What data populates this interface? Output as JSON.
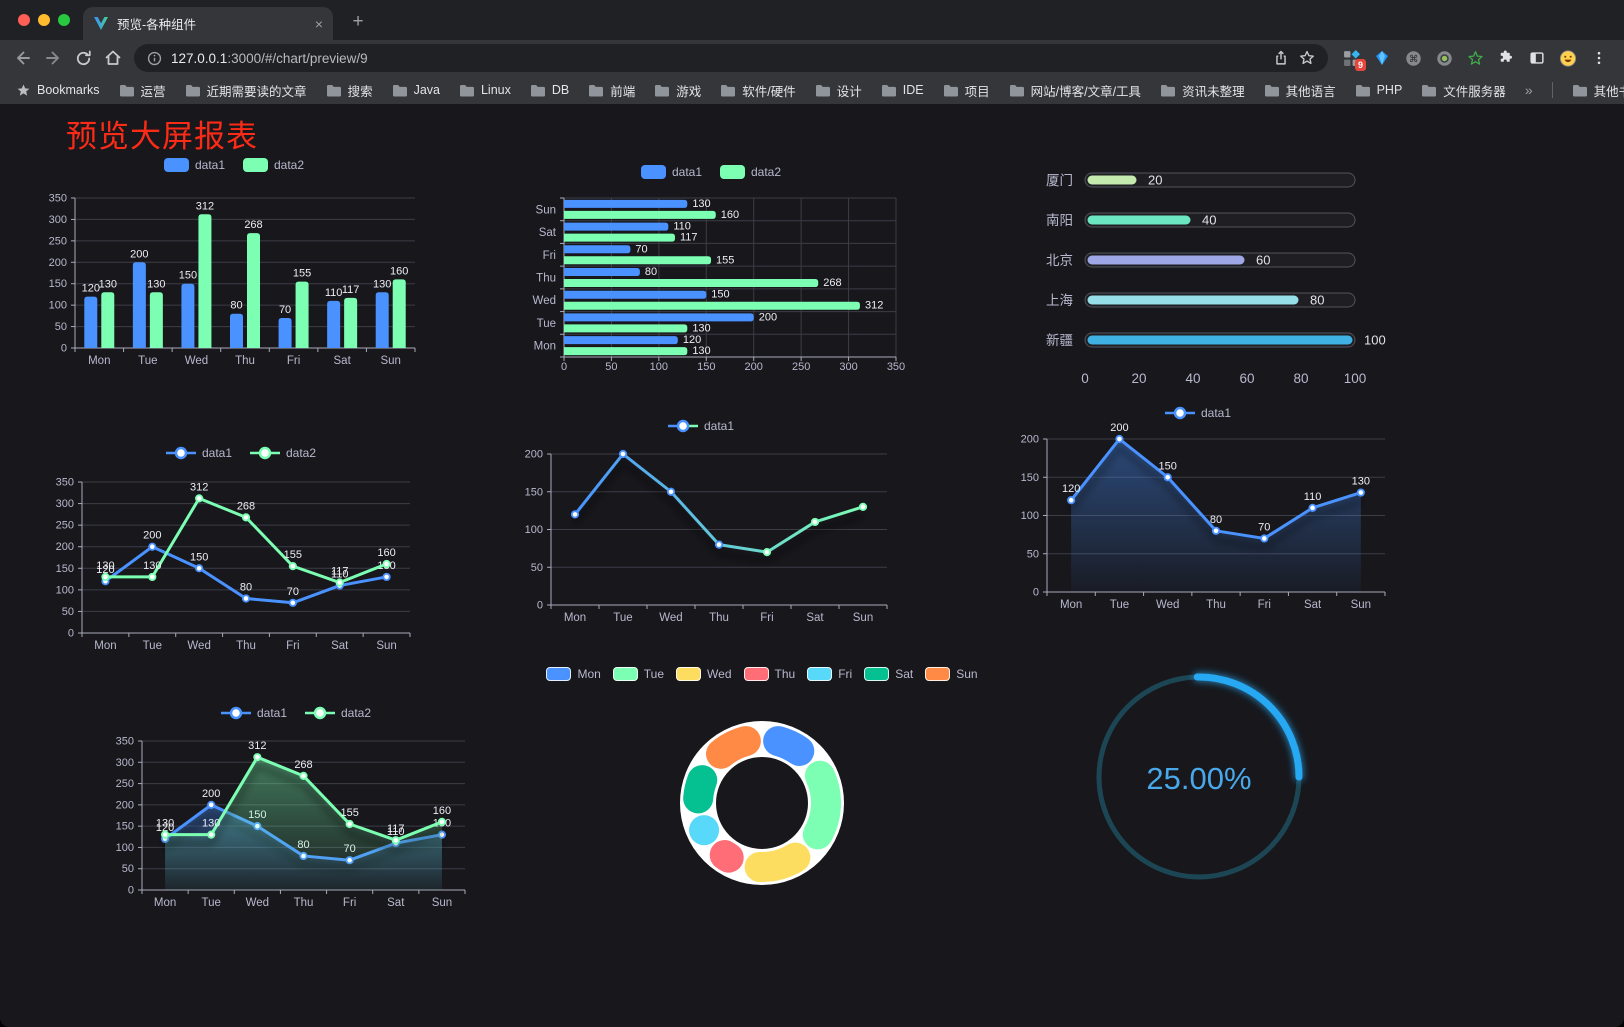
{
  "browser": {
    "tab": {
      "title": "预览-各种组件",
      "close_glyph": "×"
    },
    "new_tab_glyph": "+",
    "url": {
      "host": "127.0.0.1",
      "rest": ":3000/#/chart/preview/9"
    },
    "extension_badge": "9",
    "bookmarks_bar": {
      "bookmarks_label": "Bookmarks",
      "folders": [
        "运营",
        "近期需要读的文章",
        "搜索",
        "Java",
        "Linux",
        "DB",
        "前端",
        "游戏",
        "软件/硬件",
        "设计",
        "IDE",
        "项目",
        "网站/博客/文章/工具",
        "资讯未整理",
        "其他语言",
        "PHP",
        "文件服务器"
      ],
      "overflow_chevron": "»",
      "other_bookmarks_label": "其他书签"
    }
  },
  "page": {
    "title": "预览大屏报表",
    "title_color": "#fb2b17"
  },
  "colors": {
    "accent_blue": "#4992ff",
    "accent_green": "#7cffb2",
    "title_red": "#fb2b17",
    "page_background": "#17171c",
    "axis_text": "#b9b8ce",
    "gauge_blue": "#28a9f2"
  },
  "chart_data": [
    {
      "id": "grouped-bar",
      "type": "bar",
      "categories": [
        "Mon",
        "Tue",
        "Wed",
        "Thu",
        "Fri",
        "Sat",
        "Sun"
      ],
      "series": [
        {
          "name": "data1",
          "color": "#4992ff",
          "values": [
            120,
            200,
            150,
            80,
            70,
            110,
            130
          ]
        },
        {
          "name": "data2",
          "color": "#7cffb2",
          "values": [
            130,
            130,
            312,
            268,
            155,
            117,
            160
          ]
        }
      ],
      "y_ticks": [
        0,
        50,
        100,
        150,
        200,
        250,
        300,
        350
      ],
      "ylim": [
        0,
        350
      ],
      "legend_position": "top",
      "grid": true,
      "value_labels": true
    },
    {
      "id": "horizontal-bar",
      "type": "bar-horizontal",
      "categories": [
        "Mon",
        "Tue",
        "Wed",
        "Thu",
        "Fri",
        "Sat",
        "Sun"
      ],
      "series": [
        {
          "name": "data1",
          "color": "#4992ff",
          "values": [
            120,
            200,
            150,
            80,
            70,
            110,
            130
          ]
        },
        {
          "name": "data2",
          "color": "#7cffb2",
          "values": [
            130,
            130,
            312,
            268,
            155,
            117,
            160
          ]
        }
      ],
      "x_ticks": [
        0,
        50,
        100,
        150,
        200,
        250,
        300,
        350
      ],
      "xlim": [
        0,
        350
      ],
      "legend_position": "top",
      "grid": true,
      "value_labels": true
    },
    {
      "id": "progress-bars",
      "type": "progress",
      "categories": [
        "厦门",
        "南阳",
        "北京",
        "上海",
        "新疆"
      ],
      "values": [
        20,
        40,
        60,
        80,
        100
      ],
      "bar_colors": [
        "#c4ebad",
        "#6be6c1",
        "#a0a7e6",
        "#96dee8",
        "#3fb1e3"
      ],
      "x_ticks": [
        0,
        20,
        40,
        60,
        80,
        100
      ],
      "xlim": [
        0,
        100
      ],
      "value_labels": true
    },
    {
      "id": "two-series-line",
      "type": "line",
      "categories": [
        "Mon",
        "Tue",
        "Wed",
        "Thu",
        "Fri",
        "Sat",
        "Sun"
      ],
      "series": [
        {
          "name": "data1",
          "color": "#4992ff",
          "values": [
            120,
            200,
            150,
            80,
            70,
            110,
            130
          ]
        },
        {
          "name": "data2",
          "color": "#7cffb2",
          "values": [
            130,
            130,
            312,
            268,
            155,
            117,
            160
          ]
        }
      ],
      "y_ticks": [
        0,
        50,
        100,
        150,
        200,
        250,
        300,
        350
      ],
      "ylim": [
        0,
        350
      ],
      "legend_position": "top",
      "value_labels": true
    },
    {
      "id": "gradient-line",
      "type": "line",
      "categories": [
        "Mon",
        "Tue",
        "Wed",
        "Thu",
        "Fri",
        "Sat",
        "Sun"
      ],
      "series": [
        {
          "name": "data1",
          "gradient": [
            "#4992ff",
            "#7cffb2"
          ],
          "color": "#4992ff",
          "values": [
            120,
            200,
            150,
            80,
            70,
            110,
            130
          ]
        }
      ],
      "y_ticks": [
        0,
        50,
        100,
        150,
        200
      ],
      "ylim": [
        0,
        200
      ],
      "legend_position": "top",
      "value_labels": false,
      "shadow": true
    },
    {
      "id": "area-line",
      "type": "area",
      "categories": [
        "Mon",
        "Tue",
        "Wed",
        "Thu",
        "Fri",
        "Sat",
        "Sun"
      ],
      "series": [
        {
          "name": "data1",
          "color": "#4992ff",
          "values": [
            120,
            200,
            150,
            80,
            70,
            110,
            130
          ]
        }
      ],
      "y_ticks": [
        0,
        50,
        100,
        150,
        200
      ],
      "ylim": [
        0,
        200
      ],
      "legend_position": "top",
      "value_labels": true,
      "shadow": true
    },
    {
      "id": "two-series-area",
      "type": "area",
      "categories": [
        "Mon",
        "Tue",
        "Wed",
        "Thu",
        "Fri",
        "Sat",
        "Sun"
      ],
      "series": [
        {
          "name": "data1",
          "color": "#4992ff",
          "values": [
            120,
            200,
            150,
            80,
            70,
            110,
            130
          ]
        },
        {
          "name": "data2",
          "color": "#7cffb2",
          "values": [
            130,
            130,
            312,
            268,
            155,
            117,
            160
          ]
        }
      ],
      "y_ticks": [
        0,
        50,
        100,
        150,
        200,
        250,
        300,
        350
      ],
      "ylim": [
        0,
        350
      ],
      "legend_position": "top",
      "value_labels": true,
      "shadow": true
    },
    {
      "id": "donut-pie",
      "type": "pie",
      "categories": [
        "Mon",
        "Tue",
        "Wed",
        "Thu",
        "Fri",
        "Sat",
        "Sun"
      ],
      "values": [
        120,
        200,
        150,
        80,
        70,
        110,
        130
      ],
      "slice_colors": [
        "#4992ff",
        "#7cffb2",
        "#fddd60",
        "#ff6e76",
        "#58d9f9",
        "#05c091",
        "#ff8a45"
      ],
      "legend_position": "top"
    },
    {
      "id": "ring-progress",
      "type": "gauge",
      "percent": 25,
      "label": "25.00%",
      "progress_color": "#28a9f2",
      "track_color": "#1d4655",
      "label_color": "#49a8e9"
    }
  ]
}
